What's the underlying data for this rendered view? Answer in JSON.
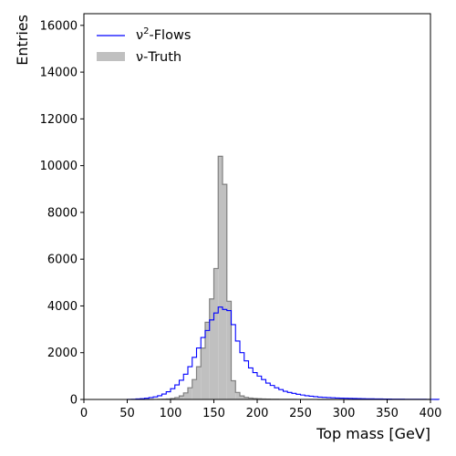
{
  "chart_data": {
    "type": "histogram",
    "xlabel": "Top mass [GeV]",
    "ylabel": "Entries",
    "xlim": [
      0,
      400
    ],
    "ylim": [
      0,
      16500
    ],
    "grid": false,
    "legend_position": "top-left",
    "x_ticks": [
      0,
      50,
      100,
      150,
      200,
      250,
      300,
      350,
      400
    ],
    "y_ticks": [
      0,
      2000,
      4000,
      6000,
      8000,
      10000,
      12000,
      14000,
      16000
    ],
    "bin_width": 5,
    "bin_start": 50,
    "series": [
      {
        "name": "-Flows",
        "name_prefix": "ν",
        "name_sup": "2",
        "style": "step",
        "color": "#0000ff",
        "values": [
          5,
          10,
          20,
          30,
          50,
          80,
          110,
          160,
          230,
          330,
          460,
          620,
          820,
          1080,
          1400,
          1800,
          2200,
          2650,
          2950,
          3400,
          3700,
          3950,
          3850,
          3800,
          3200,
          2500,
          2000,
          1650,
          1350,
          1150,
          1000,
          850,
          700,
          600,
          500,
          420,
          350,
          300,
          260,
          220,
          190,
          160,
          140,
          120,
          100,
          90,
          80,
          70,
          60,
          55,
          50,
          45,
          40,
          35,
          30,
          28,
          25,
          22,
          20,
          18,
          16,
          14,
          12,
          11,
          10,
          9,
          8,
          7,
          6,
          5,
          5,
          4
        ]
      },
      {
        "name": "-Truth",
        "name_prefix": "ν",
        "style": "filled",
        "color": "#c0c0c0",
        "edgecolor": "#808080",
        "values": [
          0,
          0,
          0,
          0,
          0,
          0,
          2,
          5,
          10,
          20,
          40,
          80,
          150,
          280,
          500,
          850,
          1400,
          2200,
          3300,
          4300,
          5600,
          10400,
          9200,
          4200,
          800,
          300,
          150,
          90,
          60,
          40,
          30,
          20,
          15,
          12,
          10,
          8,
          6,
          5,
          4,
          3,
          3,
          2,
          2,
          2,
          1,
          1,
          1,
          1,
          1,
          0,
          0,
          0,
          0,
          0,
          0,
          0,
          0,
          0,
          0,
          0,
          0,
          0,
          0,
          0,
          0,
          0,
          0,
          0,
          0,
          0,
          0,
          0
        ]
      }
    ]
  }
}
